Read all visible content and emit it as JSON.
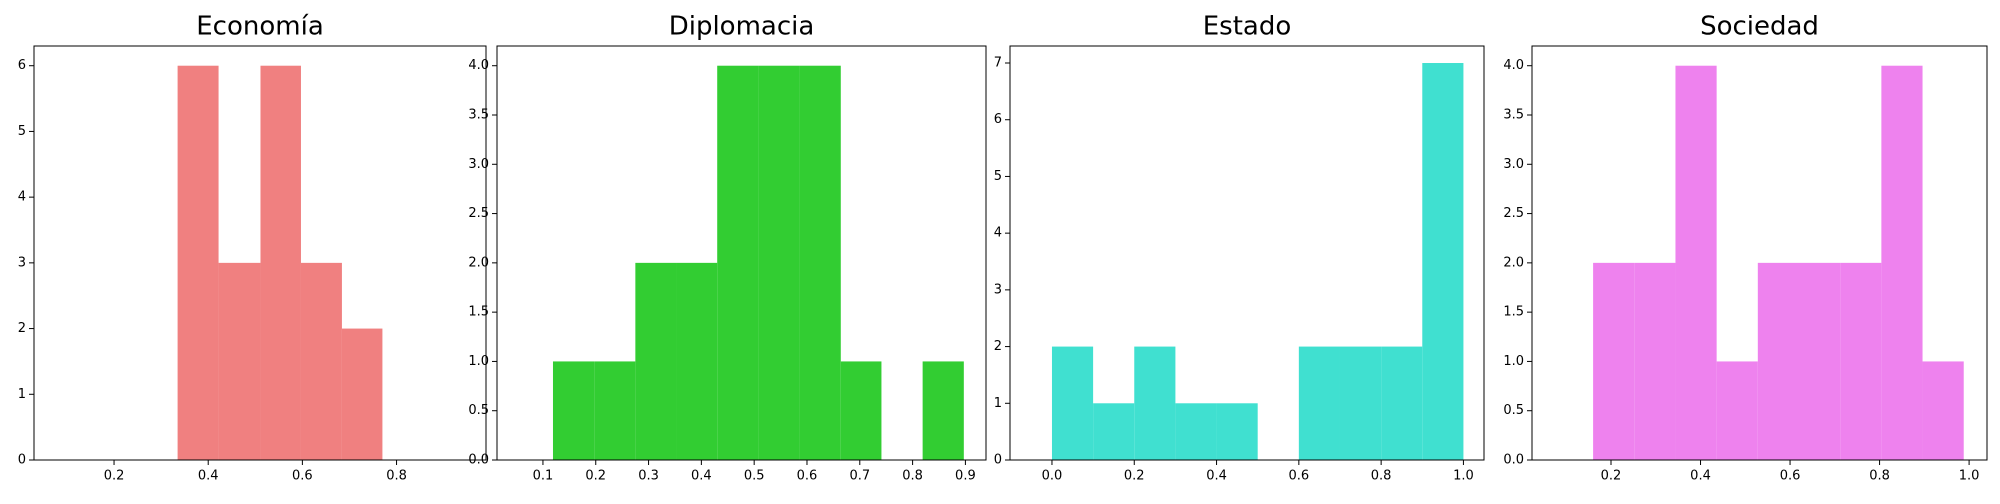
{
  "chart_data": [
    {
      "type": "histogram",
      "title": "Economía",
      "color": "#f08080",
      "bins": [
        0.335,
        0.422,
        0.511,
        0.597,
        0.684,
        0.77
      ],
      "counts": [
        6,
        3,
        6,
        3,
        2
      ],
      "xlim": [
        0.03,
        0.99
      ],
      "xticks": [
        0.2,
        0.4,
        0.6,
        0.8
      ],
      "ylim": [
        0,
        6.3
      ],
      "yticks": [
        0,
        1,
        2,
        3,
        4,
        5,
        6
      ]
    },
    {
      "type": "histogram",
      "title": "Diplomacia",
      "color": "#32cd32",
      "bins": [
        0.119,
        0.197,
        0.275,
        0.352,
        0.43,
        0.508,
        0.586,
        0.664,
        0.741,
        0.819,
        0.897
      ],
      "counts": [
        1,
        1,
        2,
        2,
        4,
        4,
        4,
        1,
        0,
        1
      ],
      "xlim": [
        0.013,
        0.939
      ],
      "xticks": [
        0.1,
        0.2,
        0.3,
        0.4,
        0.5,
        0.6,
        0.7,
        0.8,
        0.9
      ],
      "ylim": [
        0,
        4.2
      ],
      "yticks": [
        {
          "value": 0,
          "label": "0.0"
        },
        0.5,
        {
          "value": 1,
          "label": "1.0"
        },
        1.5,
        {
          "value": 2,
          "label": "2.0"
        },
        2.5,
        {
          "value": 3,
          "label": "3.0"
        },
        3.5,
        {
          "value": 4,
          "label": "4.0"
        }
      ]
    },
    {
      "type": "histogram",
      "title": "Estado",
      "color": "#40e0d0",
      "bins": [
        0,
        0.1,
        0.2,
        0.3,
        0.4,
        0.5,
        0.6,
        0.7,
        0.8,
        0.9,
        1
      ],
      "counts": [
        2,
        1,
        2,
        1,
        1,
        0,
        2,
        2,
        2,
        7
      ],
      "xlim": [
        -0.102,
        1.05
      ],
      "xticks": [
        {
          "value": 0,
          "label": "0.0"
        },
        0.2,
        0.4,
        0.6,
        0.8,
        {
          "value": 1,
          "label": "1.0"
        }
      ],
      "ylim": [
        0,
        7.3
      ],
      "yticks": [
        0,
        1,
        2,
        3,
        4,
        5,
        6,
        7
      ]
    },
    {
      "type": "histogram",
      "title": "Sociedad",
      "color": "#ee82ee",
      "bins": [
        0.16,
        0.252,
        0.344,
        0.436,
        0.528,
        0.62,
        0.712,
        0.804,
        0.896,
        0.988
      ],
      "counts": [
        2,
        2,
        4,
        1,
        2,
        2,
        2,
        4,
        1
      ],
      "xlim": [
        0.0235,
        1.04
      ],
      "xticks": [
        0.2,
        0.4,
        0.6,
        0.8,
        {
          "value": 1,
          "label": "1.0"
        }
      ],
      "ylim": [
        0,
        4.2
      ],
      "yticks": [
        {
          "value": 0,
          "label": "0.0"
        },
        0.5,
        {
          "value": 1,
          "label": "1.0"
        },
        1.5,
        {
          "value": 2,
          "label": "2.0"
        },
        2.5,
        {
          "value": 3,
          "label": "3.0"
        },
        3.5,
        {
          "value": 4,
          "label": "4.0"
        }
      ]
    }
  ]
}
